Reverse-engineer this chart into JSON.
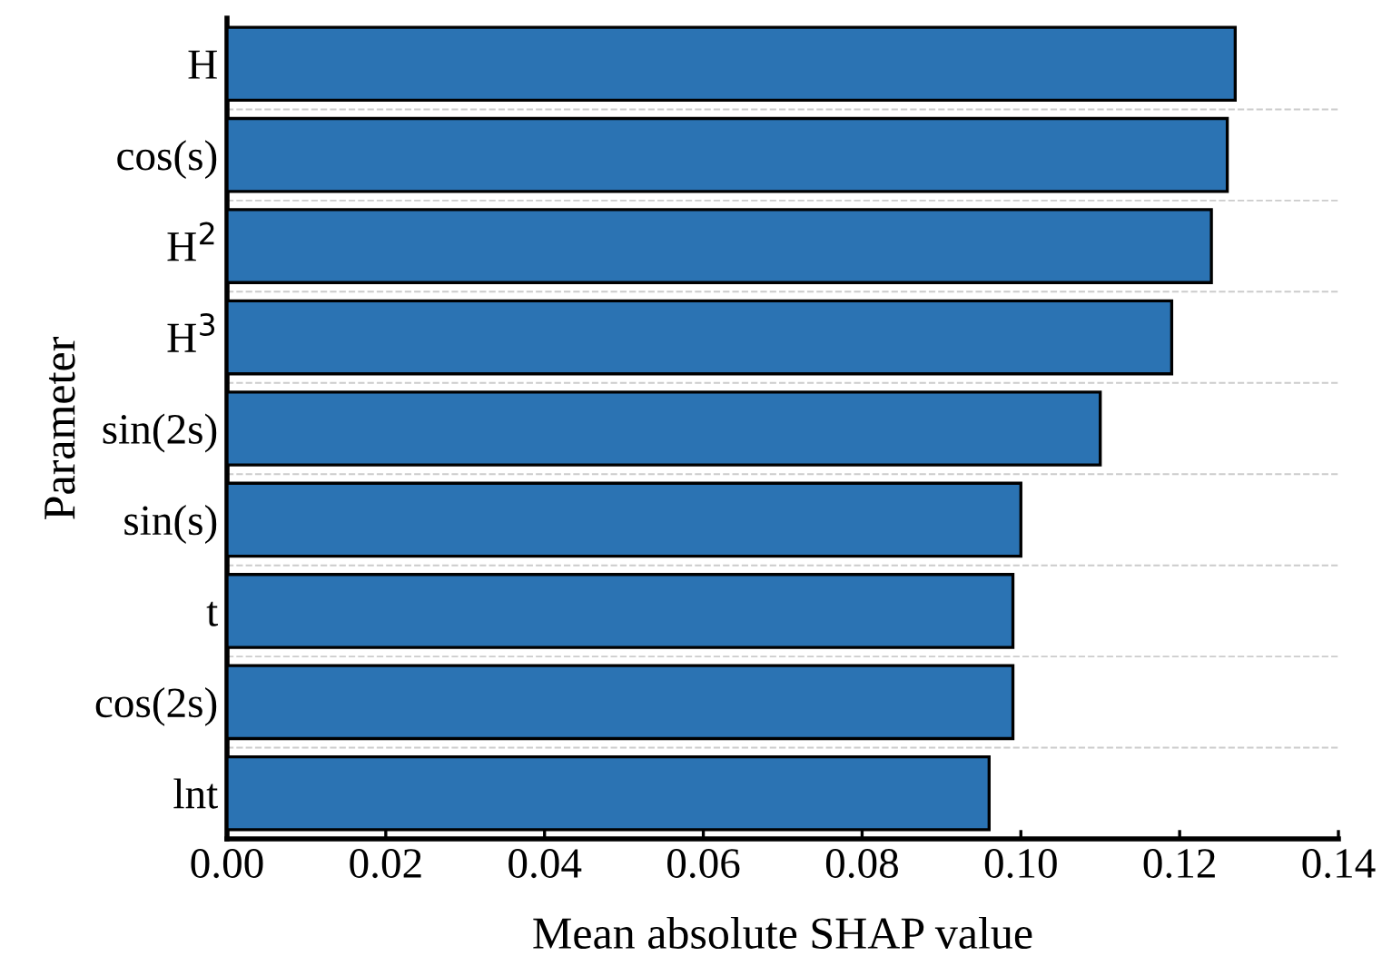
{
  "chart_data": {
    "type": "bar",
    "orientation": "horizontal",
    "xlabel": "Mean absolute SHAP value",
    "ylabel": "Parameter",
    "categories": [
      "H",
      "cos(s)",
      "H$^{2}$",
      "H$^{3}$",
      "sin(2s)",
      "sin(s)",
      "t",
      "cos(2s)",
      "lnt"
    ],
    "values": [
      0.127,
      0.126,
      0.124,
      0.119,
      0.11,
      0.1,
      0.099,
      0.099,
      0.096
    ],
    "color": "#2b73b3",
    "xlim": [
      0,
      0.14
    ],
    "xticks": [
      {
        "value": 0,
        "label": "0.00"
      },
      {
        "value": 0.02,
        "label": "0.02"
      },
      {
        "value": 0.04,
        "label": "0.04"
      },
      {
        "value": 0.06,
        "label": "0.06"
      },
      {
        "value": 0.08,
        "label": "0.08"
      },
      {
        "value": 0.1,
        "label": "0.10"
      },
      {
        "value": 0.12,
        "label": "0.12"
      },
      {
        "value": 0.14,
        "label": "0.14"
      }
    ],
    "grid": "y"
  }
}
